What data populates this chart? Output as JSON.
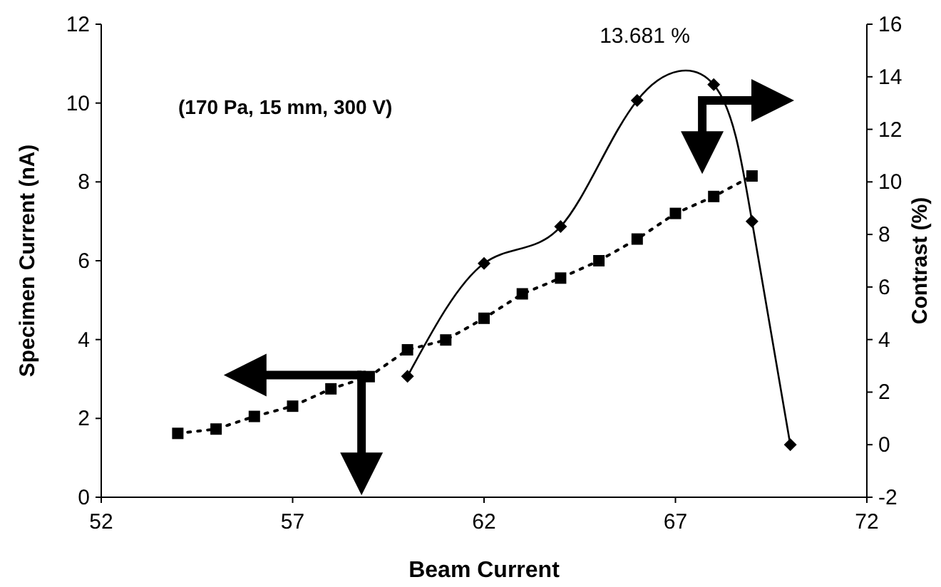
{
  "chart_data": {
    "type": "line",
    "xlabel": "Beam Current",
    "ylabel": "Specimen Current (nA)",
    "y2label": "Contrast (%)",
    "xlim": [
      52,
      72
    ],
    "xticks": [
      52,
      57,
      62,
      67,
      72
    ],
    "ylim": [
      0,
      12
    ],
    "yticks": [
      0,
      2,
      4,
      6,
      8,
      10,
      12
    ],
    "y2lim": [
      -2,
      16
    ],
    "y2ticks": [
      -2,
      0,
      2,
      4,
      6,
      8,
      10,
      12,
      14,
      16
    ],
    "grid": false,
    "series": [
      {
        "color": "#000000",
        "marker": "square",
        "line_style": "dotted",
        "x": [
          54,
          55,
          56,
          57,
          58,
          59,
          60,
          61,
          62,
          63,
          64,
          65,
          66,
          67,
          68,
          69
        ],
        "values": [
          1.62,
          1.73,
          2.05,
          2.31,
          2.75,
          3.06,
          3.74,
          3.99,
          4.54,
          5.16,
          5.56,
          6.0,
          6.55,
          7.2,
          7.63,
          8.15
        ]
      },
      {
        "color": "#000000",
        "marker": "diamond",
        "line_style": "solid",
        "axis": "y2",
        "x": [
          60,
          62,
          64,
          66,
          68,
          69,
          70
        ],
        "values": [
          2.6,
          6.9,
          8.3,
          13.1,
          13.7,
          8.5,
          0.0
        ]
      }
    ],
    "annotations": [
      "(170 Pa, 15 mm, 300 V)",
      "13.681 %"
    ]
  }
}
